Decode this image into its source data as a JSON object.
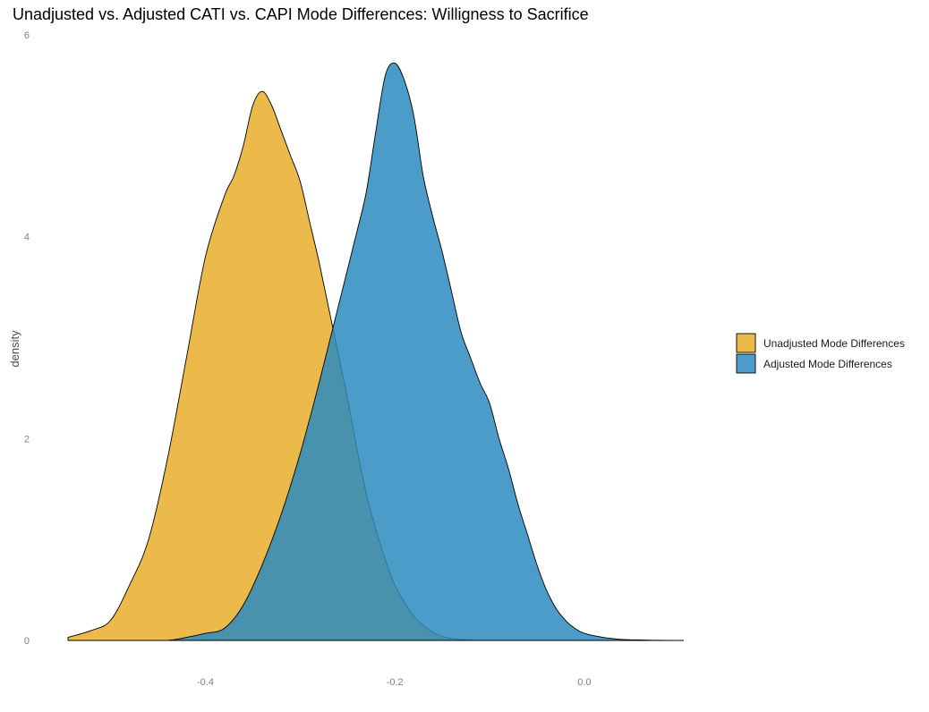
{
  "chart_data": {
    "type": "area",
    "title": "Unadjusted vs. Adjusted CATI vs. CAPI Mode Differences: Willigness to Sacrifice",
    "xlabel": "",
    "ylabel": "density",
    "xlim": [
      -0.545,
      0.105
    ],
    "ylim": [
      0,
      6
    ],
    "x_ticks": [
      -0.4,
      -0.2,
      0.0
    ],
    "x_tick_labels": [
      "-0.4",
      "-0.2",
      "0.0"
    ],
    "y_ticks": [
      0,
      2,
      4,
      6
    ],
    "y_tick_labels": [
      "0",
      "2",
      "4",
      "6"
    ],
    "grid": false,
    "legend_position": "right",
    "series": [
      {
        "name": "Unadjusted Mode Differences",
        "color": "#e9ae2b",
        "x": [
          -0.545,
          -0.52,
          -0.5,
          -0.48,
          -0.46,
          -0.44,
          -0.42,
          -0.4,
          -0.38,
          -0.37,
          -0.36,
          -0.35,
          -0.34,
          -0.33,
          -0.32,
          -0.31,
          -0.3,
          -0.29,
          -0.28,
          -0.27,
          -0.26,
          -0.25,
          -0.24,
          -0.23,
          -0.22,
          -0.21,
          -0.2,
          -0.19,
          -0.18,
          -0.17,
          -0.16,
          -0.15,
          -0.14,
          -0.13,
          -0.12,
          -0.11,
          -0.1
        ],
        "y": [
          0.03,
          0.1,
          0.2,
          0.55,
          1.0,
          1.8,
          2.8,
          3.8,
          4.4,
          4.6,
          4.9,
          5.3,
          5.44,
          5.3,
          5.05,
          4.8,
          4.55,
          4.15,
          3.75,
          3.3,
          2.85,
          2.4,
          1.9,
          1.45,
          1.1,
          0.8,
          0.55,
          0.38,
          0.24,
          0.15,
          0.08,
          0.04,
          0.02,
          0.01,
          0.005,
          0.0,
          0.0
        ]
      },
      {
        "name": "Adjusted Mode Differences",
        "color": "#2b8bc0",
        "x": [
          -0.545,
          -0.48,
          -0.44,
          -0.42,
          -0.4,
          -0.38,
          -0.36,
          -0.34,
          -0.32,
          -0.3,
          -0.28,
          -0.26,
          -0.24,
          -0.23,
          -0.22,
          -0.21,
          -0.2,
          -0.19,
          -0.18,
          -0.17,
          -0.16,
          -0.15,
          -0.14,
          -0.13,
          -0.12,
          -0.11,
          -0.1,
          -0.09,
          -0.08,
          -0.07,
          -0.06,
          -0.05,
          -0.04,
          -0.03,
          -0.02,
          -0.01,
          0.0,
          0.02,
          0.04,
          0.06,
          0.08,
          0.105
        ],
        "y": [
          0.0,
          0.0,
          0.0,
          0.03,
          0.07,
          0.12,
          0.35,
          0.75,
          1.25,
          1.85,
          2.55,
          3.3,
          4.05,
          4.45,
          5.05,
          5.6,
          5.72,
          5.55,
          5.2,
          4.6,
          4.2,
          3.85,
          3.45,
          3.05,
          2.8,
          2.55,
          2.35,
          2.0,
          1.7,
          1.35,
          1.05,
          0.75,
          0.5,
          0.32,
          0.2,
          0.12,
          0.07,
          0.03,
          0.01,
          0.005,
          0.002,
          0.0
        ]
      }
    ]
  }
}
